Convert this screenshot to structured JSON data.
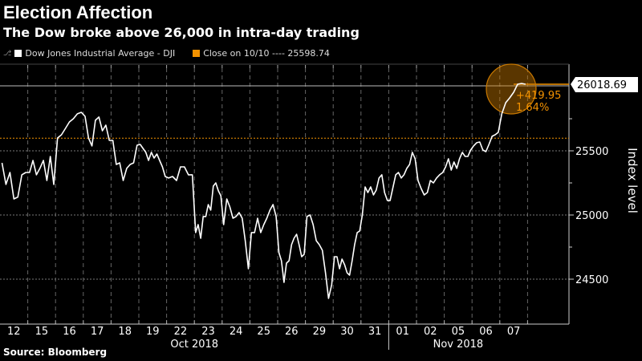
{
  "header": {
    "title": "Election Affection",
    "subtitle": "The Dow broke above 26,000 in intra-day trading"
  },
  "legend": [
    {
      "label": "Dow Jones Industrial Average - DJI",
      "color": "#ffffff"
    },
    {
      "label": "Close on 10/10 ---- 25598.74",
      "color": "#f39200"
    }
  ],
  "source": "Source: Bloomberg",
  "chart_data": {
    "type": "line",
    "title": "Election Affection",
    "subtitle": "The Dow broke above 26,000 in intra-day trading",
    "ylabel": "Index level",
    "ylim": [
      24200,
      26500
    ],
    "yticks": [
      24500,
      25000,
      25500
    ],
    "grid": true,
    "legend_position": "top-left",
    "x_tick_labels": [
      "12",
      "15",
      "16",
      "17",
      "18",
      "19",
      "22",
      "23",
      "24",
      "25",
      "26",
      "29",
      "30",
      "31",
      "01",
      "02",
      "05",
      "06",
      "07"
    ],
    "month_labels": [
      "Oct 2018",
      "Nov 2018"
    ],
    "reference_line": {
      "label": "Close on 10/10",
      "value": 25598.74,
      "color": "#f39200"
    },
    "last_value": {
      "label": "26018.69",
      "value": 26018.69
    },
    "annotation": {
      "change": "+419.95",
      "pct": "1.64%",
      "color": "#f39200"
    },
    "series": [
      {
        "name": "Dow Jones Industrial Average - DJI",
        "color": "#ffffff",
        "intraday": [
          {
            "date": "2018-10-12",
            "values": [
              25406,
              25238,
              25331,
              25125,
              25140,
              25313,
              25331
            ]
          },
          {
            "date": "2018-10-15",
            "values": [
              25331,
              25425,
              25313,
              25363,
              25425,
              25269,
              25456,
              25238
            ]
          },
          {
            "date": "2018-10-16",
            "values": [
              25600,
              25625,
              25675,
              25725,
              25750,
              25788,
              25800
            ]
          },
          {
            "date": "2018-10-17",
            "values": [
              25769,
              25600,
              25538,
              25738,
              25763,
              25656,
              25700,
              25581
            ]
          },
          {
            "date": "2018-10-18",
            "values": [
              25581,
              25394,
              25406,
              25269,
              25363,
              25394,
              25406,
              25544
            ]
          },
          {
            "date": "2018-10-19",
            "values": [
              25550,
              25519,
              25488,
              25425,
              25488,
              25444,
              25475,
              25425,
              25375,
              25300
            ]
          },
          {
            "date": "2018-10-22",
            "values": [
              25288,
              25300,
              25269,
              25375,
              25375,
              25313,
              25313
            ]
          },
          {
            "date": "2018-10-23",
            "values": [
              24863,
              24925,
              24819,
              24988,
              24988,
              25081,
              25038,
              25225,
              25250,
              25188,
              25150
            ]
          },
          {
            "date": "2018-10-24",
            "values": [
              24925,
              25125,
              25063,
              24975,
              24988,
              25019,
              24975,
              24800,
              24581
            ]
          },
          {
            "date": "2018-10-25",
            "values": [
              24863,
              24863,
              24975,
              24863,
              24925,
              24975,
              25038,
              25081,
              24988
            ]
          },
          {
            "date": "2018-10-26",
            "values": [
              24706,
              24644,
              24475,
              24625,
              24644,
              24769,
              24819,
              24850,
              24769,
              24675,
              24694
            ]
          },
          {
            "date": "2018-10-29",
            "values": [
              24988,
              25000,
              24925,
              24800,
              24769,
              24725,
              24550,
              24350,
              24456
            ]
          },
          {
            "date": "2018-10-30",
            "values": [
              24675,
              24675,
              24581,
              24656,
              24613,
              24550,
              24531,
              24644,
              24769,
              24863,
              24875
            ]
          },
          {
            "date": "2018-10-31",
            "values": [
              25000,
              25219,
              25175,
              25219,
              25156,
              25194,
              25288,
              25313,
              25175,
              25113
            ]
          },
          {
            "date": "2018-11-01",
            "values": [
              25113,
              25213,
              25313,
              25331,
              25288,
              25313,
              25363,
              25394,
              25488,
              25438
            ]
          },
          {
            "date": "2018-11-02",
            "values": [
              25269,
              25206,
              25156,
              25175,
              25269,
              25250,
              25288,
              25313,
              25331
            ]
          },
          {
            "date": "2018-11-05",
            "values": [
              25375,
              25438,
              25350,
              25413,
              25363,
              25438,
              25488,
              25456,
              25456,
              25506
            ]
          },
          {
            "date": "2018-11-06",
            "values": [
              25538,
              25563,
              25569,
              25506,
              25494,
              25550,
              25613,
              25625,
              25644
            ]
          },
          {
            "date": "2018-11-07",
            "values": [
              25788,
              25875,
              25913,
              25956,
              26019,
              26025,
              26019
            ]
          }
        ]
      }
    ]
  }
}
